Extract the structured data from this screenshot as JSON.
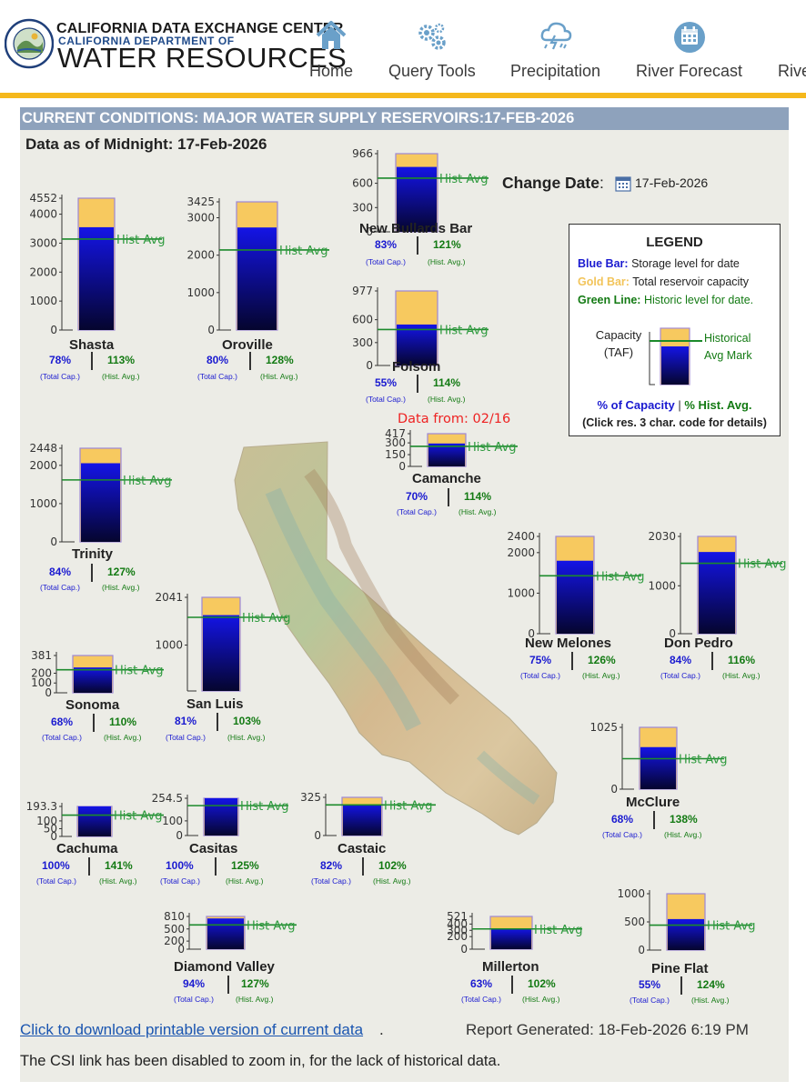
{
  "header": {
    "org_line1": "CALIFORNIA DATA EXCHANGE CENTER",
    "org_line2": "CALIFORNIA DEPARTMENT OF",
    "org_line3": "WATER RESOURCES",
    "nav": [
      {
        "label": "Home",
        "icon": "home-icon"
      },
      {
        "label": "Query Tools",
        "icon": "gears-icon"
      },
      {
        "label": "Precipitation",
        "icon": "storm-cloud-icon"
      },
      {
        "label": "River Forecast",
        "icon": "calendar-icon"
      },
      {
        "label": "Rive",
        "icon": ""
      }
    ],
    "accent_color": "#f5b81c"
  },
  "page": {
    "title": "CURRENT CONDITIONS: MAJOR WATER SUPPLY RESERVOIRS:17-FEB-2026",
    "data_as_of": "Data as of Midnight: 17-Feb-2026",
    "change_date_label": "Change Date",
    "change_date_value": "17-Feb-2026",
    "data_from_note": "Data from: 02/16",
    "download_link": "Click to download printable version of current data",
    "report_generated": "Report Generated: 18-Feb-2026 6:19 PM",
    "csi_note": "The CSI link has been disabled to zoom in, for the lack of historical data."
  },
  "legend": {
    "title": "LEGEND",
    "blue_key": "Blue Bar:",
    "blue_desc": "Storage level for date",
    "gold_key": "Gold Bar:",
    "gold_desc": "Total reservoir capacity",
    "green_key": "Green Line:",
    "green_desc": "Historic level for date.",
    "capacity_label": "Capacity",
    "capacity_unit": "(TAF)",
    "hist_mark_line1": "Historical",
    "hist_mark_line2": "Avg Mark",
    "pct_capacity": "% of Capacity",
    "pct_sep": "|",
    "pct_hist": "% Hist. Avg.",
    "click_note": "(Click res. 3 char. code for details)",
    "colors": {
      "blue": "#1a1ad0",
      "gold": "#f7c95f",
      "green": "#1b8a2b"
    }
  },
  "labels": {
    "hist_avg": "Hist Avg",
    "total_cap": "(Total Cap.)",
    "hist_avg_small": "(Hist. Avg.)"
  },
  "chart_data": {
    "type": "bar",
    "units": "TAF",
    "series": [
      {
        "name": "Storage level for date"
      },
      {
        "name": "Total reservoir capacity"
      },
      {
        "name": "Historic level for date"
      }
    ],
    "reservoirs": [
      {
        "name": "Shasta",
        "capacity": 4552,
        "storage": 3550,
        "hist_avg": 3140,
        "ticks": [
          "0",
          "1000",
          "2000",
          "3000",
          "4000",
          "4552"
        ],
        "pct_capacity": "78%",
        "pct_hist": "113%"
      },
      {
        "name": "Oroville",
        "capacity": 3425,
        "storage": 2740,
        "hist_avg": 2140,
        "ticks": [
          "0",
          "1000",
          "2000",
          "3000",
          "3425"
        ],
        "pct_capacity": "80%",
        "pct_hist": "128%"
      },
      {
        "name": "New Bullards Bar",
        "capacity": 966,
        "storage": 802,
        "hist_avg": 663,
        "ticks": [
          "0",
          "300",
          "600",
          "966"
        ],
        "pct_capacity": "83%",
        "pct_hist": "121%"
      },
      {
        "name": "Folsom",
        "capacity": 977,
        "storage": 537,
        "hist_avg": 471,
        "ticks": [
          "0",
          "300",
          "600",
          "977"
        ],
        "pct_capacity": "55%",
        "pct_hist": "114%"
      },
      {
        "name": "Camanche",
        "capacity": 417,
        "storage": 292,
        "hist_avg": 256,
        "ticks": [
          "0",
          "150",
          "300",
          "417"
        ],
        "pct_capacity": "70%",
        "pct_hist": "114%"
      },
      {
        "name": "Trinity",
        "capacity": 2448,
        "storage": 2056,
        "hist_avg": 1619,
        "ticks": [
          "0",
          "1000",
          "2000",
          "2448"
        ],
        "pct_capacity": "84%",
        "pct_hist": "127%"
      },
      {
        "name": "New Melones",
        "capacity": 2400,
        "storage": 1800,
        "hist_avg": 1429,
        "ticks": [
          "0",
          "1000",
          "2000",
          "2400"
        ],
        "pct_capacity": "75%",
        "pct_hist": "126%"
      },
      {
        "name": "Don Pedro",
        "capacity": 2030,
        "storage": 1705,
        "hist_avg": 1470,
        "ticks": [
          "0",
          "1000",
          "2030"
        ],
        "pct_capacity": "84%",
        "pct_hist": "116%"
      },
      {
        "name": "San Luis",
        "capacity": 2041,
        "storage": 1653,
        "hist_avg": 1605,
        "ticks": [
          "1000",
          "2041"
        ],
        "pct_capacity": "81%",
        "pct_hist": "103%"
      },
      {
        "name": "Sonoma",
        "capacity": 381,
        "storage": 259,
        "hist_avg": 235,
        "ticks": [
          "0",
          "100",
          "200",
          "381"
        ],
        "pct_capacity": "68%",
        "pct_hist": "110%"
      },
      {
        "name": "McClure",
        "capacity": 1025,
        "storage": 697,
        "hist_avg": 505,
        "ticks": [
          "0",
          "1025"
        ],
        "pct_capacity": "68%",
        "pct_hist": "138%"
      },
      {
        "name": "Cachuma",
        "capacity": 193.3,
        "storage": 193.3,
        "hist_avg": 137,
        "ticks": [
          "0",
          "50",
          "100",
          "193.3"
        ],
        "pct_capacity": "100%",
        "pct_hist": "141%"
      },
      {
        "name": "Casitas",
        "capacity": 254.5,
        "storage": 254.5,
        "hist_avg": 204,
        "ticks": [
          "0",
          "100",
          "254.5"
        ],
        "pct_capacity": "100%",
        "pct_hist": "125%"
      },
      {
        "name": "Castaic",
        "capacity": 325,
        "storage": 267,
        "hist_avg": 261,
        "ticks": [
          "0",
          "325"
        ],
        "pct_capacity": "82%",
        "pct_hist": "102%"
      },
      {
        "name": "Diamond Valley",
        "capacity": 810,
        "storage": 761,
        "hist_avg": 600,
        "ticks": [
          "0",
          "200",
          "500",
          "810"
        ],
        "pct_capacity": "94%",
        "pct_hist": "127%"
      },
      {
        "name": "Millerton",
        "capacity": 521,
        "storage": 328,
        "hist_avg": 322,
        "ticks": [
          "0",
          "200",
          "300",
          "400",
          "521"
        ],
        "pct_capacity": "63%",
        "pct_hist": "102%"
      },
      {
        "name": "Pine Flat",
        "capacity": 1000,
        "storage": 550,
        "hist_avg": 443,
        "ticks": [
          "0",
          "500",
          "1000"
        ],
        "pct_capacity": "55%",
        "pct_hist": "124%"
      }
    ]
  }
}
